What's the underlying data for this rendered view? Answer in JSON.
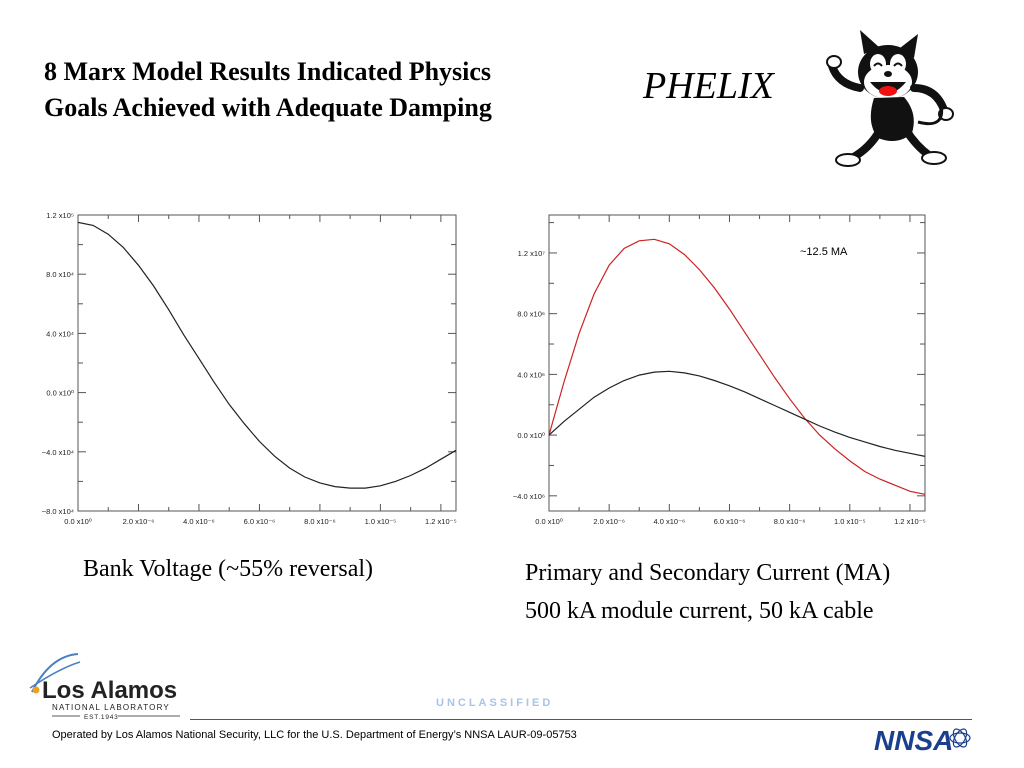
{
  "slide": {
    "title_line1": "8 Marx Model Results Indicated Physics",
    "title_line2": "Goals Achieved with Adequate Damping",
    "project": "PHELIX",
    "caption_left": "Bank Voltage (~55% reversal)",
    "caption_right_line1": "Primary and Secondary Current (MA)",
    "caption_right_line2": "500 kA module current, 50 kA cable"
  },
  "footer": {
    "logo_name": "Los Alamos",
    "logo_sub": "NATIONAL LABORATORY",
    "logo_est": "EST.1943",
    "classification": "UNCLASSIFIED",
    "operated_by": "Operated by Los Alamos National Security, LLC for the U.S. Department of Energy’s NNSA   LAUR-09-05753",
    "nnsa_logo": "NNSA"
  },
  "colors": {
    "red_series": "#cc2222",
    "black_series": "#222222",
    "classification": "#a9c4e4",
    "nnsa_blue": "#1b3f8f"
  },
  "chart_data": [
    {
      "type": "line",
      "title": "",
      "xlabel": "",
      "ylabel": "",
      "xlim": [
        0,
        1.25e-05
      ],
      "ylim": [
        -80000,
        120000
      ],
      "x_ticks": [
        0,
        2e-06,
        4e-06,
        6e-06,
        8e-06,
        1e-05,
        1.2e-05
      ],
      "x_tick_labels": [
        "0.0 x10⁰",
        "2.0 x10⁻⁶",
        "4.0 x10⁻⁶",
        "6.0 x10⁻⁶",
        "8.0 x10⁻⁶",
        "1.0 x10⁻⁵",
        "1.2 x10⁻⁵"
      ],
      "y_ticks": [
        120000,
        80000,
        40000,
        0,
        -40000,
        -80000
      ],
      "y_tick_labels": [
        "1.2 x10⁵",
        "8.0 x10⁴",
        "4.0 x10⁴",
        "0.0 x10⁰",
        "−4.0 x10⁴",
        "−8.0 x10⁴"
      ],
      "grid": false,
      "series": [
        {
          "color": "#222222",
          "x": [
            0,
            5e-07,
            1e-06,
            1.5e-06,
            2e-06,
            2.5e-06,
            3e-06,
            3.5e-06,
            4e-06,
            4.5e-06,
            5e-06,
            5.5e-06,
            6e-06,
            6.5e-06,
            7e-06,
            7.5e-06,
            8e-06,
            8.5e-06,
            9e-06,
            9.5e-06,
            1e-05,
            1.05e-05,
            1.1e-05,
            1.15e-05,
            1.2e-05,
            1.25e-05
          ],
          "values": [
            115000,
            113000,
            107000,
            98000,
            86000,
            72000,
            56000,
            39000,
            23000,
            7000,
            -8000,
            -21000,
            -33000,
            -43000,
            -51000,
            -57000,
            -61000,
            -63500,
            -64500,
            -64500,
            -63000,
            -60000,
            -56000,
            -51000,
            -45000,
            -39000
          ]
        }
      ]
    },
    {
      "type": "line",
      "title": "",
      "xlabel": "",
      "ylabel": "",
      "annotation": "~12.5 MA",
      "xlim": [
        0,
        1.25e-05
      ],
      "ylim": [
        -5000000,
        14500000
      ],
      "x_ticks": [
        0,
        2e-06,
        4e-06,
        6e-06,
        8e-06,
        1e-05,
        1.2e-05
      ],
      "x_tick_labels": [
        "0.0 x10⁰",
        "2.0 x10⁻⁶",
        "4.0 x10⁻⁶",
        "6.0 x10⁻⁶",
        "8.0 x10⁻⁶",
        "1.0 x10⁻⁵",
        "1.2 x10⁻⁵"
      ],
      "y_ticks": [
        12000000,
        8000000,
        4000000,
        0,
        -4000000
      ],
      "y_tick_labels": [
        "1.2 x10⁷",
        "8.0 x10⁶",
        "4.0 x10⁶",
        "0.0 x10⁰",
        "−4.0 x10⁶"
      ],
      "grid": false,
      "series": [
        {
          "color": "#cc2222",
          "x": [
            0,
            5e-07,
            1e-06,
            1.5e-06,
            2e-06,
            2.5e-06,
            3e-06,
            3.5e-06,
            4e-06,
            4.5e-06,
            5e-06,
            5.5e-06,
            6e-06,
            6.5e-06,
            7e-06,
            7.5e-06,
            8e-06,
            8.5e-06,
            9e-06,
            9.5e-06,
            1e-05,
            1.05e-05,
            1.1e-05,
            1.15e-05,
            1.2e-05,
            1.25e-05
          ],
          "values": [
            0,
            3500000,
            6700000,
            9300000,
            11200000,
            12300000,
            12800000,
            12900000,
            12600000,
            11900000,
            10900000,
            9700000,
            8300000,
            6800000,
            5300000,
            3800000,
            2400000,
            1100000,
            0,
            -900000,
            -1700000,
            -2400000,
            -2900000,
            -3300000,
            -3700000,
            -3900000
          ]
        },
        {
          "color": "#222222",
          "x": [
            0,
            5e-07,
            1e-06,
            1.5e-06,
            2e-06,
            2.5e-06,
            3e-06,
            3.5e-06,
            4e-06,
            4.5e-06,
            5e-06,
            5.5e-06,
            6e-06,
            6.5e-06,
            7e-06,
            7.5e-06,
            8e-06,
            8.5e-06,
            9e-06,
            9.5e-06,
            1e-05,
            1.05e-05,
            1.1e-05,
            1.15e-05,
            1.2e-05,
            1.25e-05
          ],
          "values": [
            0,
            900000,
            1700000,
            2500000,
            3100000,
            3600000,
            3950000,
            4150000,
            4200000,
            4100000,
            3900000,
            3600000,
            3250000,
            2850000,
            2400000,
            1950000,
            1500000,
            1050000,
            600000,
            200000,
            -150000,
            -450000,
            -750000,
            -1000000,
            -1200000,
            -1400000
          ]
        }
      ]
    }
  ]
}
